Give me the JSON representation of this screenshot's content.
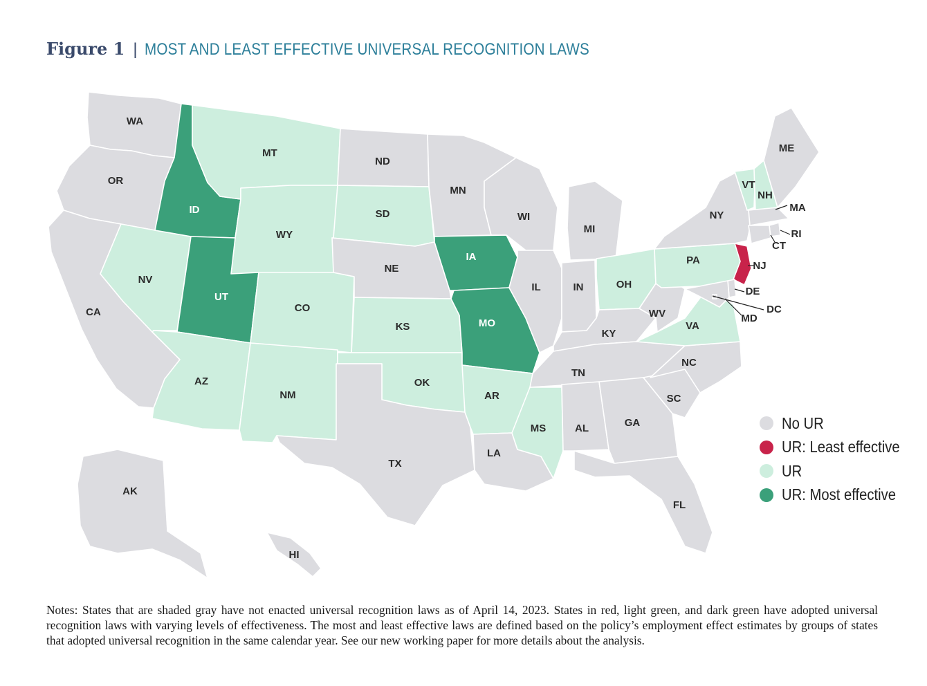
{
  "figure": {
    "label": "Figure 1",
    "separator": "|",
    "title": "MOST AND LEAST EFFECTIVE UNIVERSAL RECOGNITION LAWS"
  },
  "colors": {
    "no_ur": "#dcdce0",
    "least_effective": "#c8234a",
    "ur": "#cdeede",
    "most_effective": "#3ba07a",
    "border": "#ffffff"
  },
  "legend": [
    {
      "key": "no_ur",
      "label": "No UR"
    },
    {
      "key": "least_effective",
      "label": "UR: Least effective"
    },
    {
      "key": "ur",
      "label": "UR"
    },
    {
      "key": "most_effective",
      "label": "UR: Most effective"
    }
  ],
  "states": {
    "WA": "no_ur",
    "OR": "no_ur",
    "CA": "no_ur",
    "NV": "ur",
    "ID": "most_effective",
    "MT": "ur",
    "WY": "ur",
    "UT": "most_effective",
    "AZ": "ur",
    "CO": "ur",
    "NM": "ur",
    "ND": "no_ur",
    "SD": "ur",
    "NE": "no_ur",
    "KS": "ur",
    "OK": "ur",
    "TX": "no_ur",
    "MN": "no_ur",
    "IA": "most_effective",
    "MO": "most_effective",
    "AR": "ur",
    "LA": "no_ur",
    "WI": "no_ur",
    "IL": "no_ur",
    "MS": "ur",
    "MI": "no_ur",
    "IN": "no_ur",
    "OH": "ur",
    "KY": "no_ur",
    "TN": "no_ur",
    "AL": "no_ur",
    "GA": "no_ur",
    "FL": "no_ur",
    "SC": "no_ur",
    "NC": "no_ur",
    "VA": "ur",
    "WV": "no_ur",
    "PA": "ur",
    "NY": "no_ur",
    "VT": "ur",
    "NH": "ur",
    "ME": "no_ur",
    "MA": "no_ur",
    "RI": "no_ur",
    "CT": "no_ur",
    "NJ": "least_effective",
    "DE": "no_ur",
    "MD": "no_ur",
    "DC": "no_ur",
    "AK": "no_ur",
    "HI": "no_ur"
  },
  "notes": "Notes: States that are shaded gray have not enacted universal recognition laws as of April 14, 2023. States in red, light green, and dark green have adopted universal recognition laws with varying levels of effectiveness. The most and least effective laws are defined based on the policy’s employment effect estimates by groups of states that adopted universal recognition in the same calendar year. See our new working paper for more details about the analysis."
}
